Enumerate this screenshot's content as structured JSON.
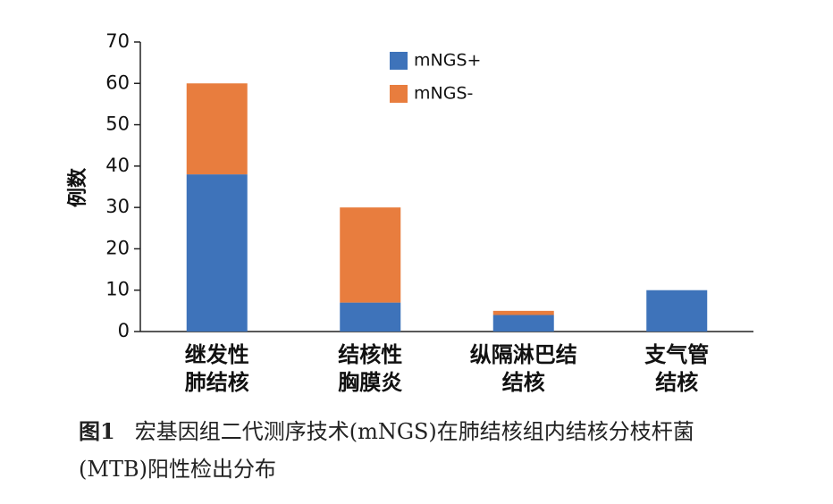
{
  "chart_data": {
    "type": "bar",
    "stacked": true,
    "y_label": "例数",
    "categories": [
      [
        "继发性",
        "肺结核"
      ],
      [
        "结核性",
        "胸膜炎"
      ],
      [
        "纵隔淋巴结",
        "结核"
      ],
      [
        "支气管",
        "结核"
      ]
    ],
    "series": [
      {
        "name": "mNGS+",
        "color": "#3e73ba",
        "values": [
          38,
          7,
          4,
          10
        ]
      },
      {
        "name": "mNGS-",
        "color": "#e87d3e",
        "values": [
          22,
          23,
          1,
          0
        ]
      }
    ],
    "ylim": [
      0,
      70
    ],
    "yticks": [
      0,
      10,
      20,
      30,
      40,
      50,
      60,
      70
    ],
    "grid": false,
    "legend": "top",
    "caption": {
      "label": "图1",
      "text": "宏基因组二代测序技术(mNGS)在肺结核组内结核分枝杆菌(MTB)阳性检出分布"
    }
  }
}
